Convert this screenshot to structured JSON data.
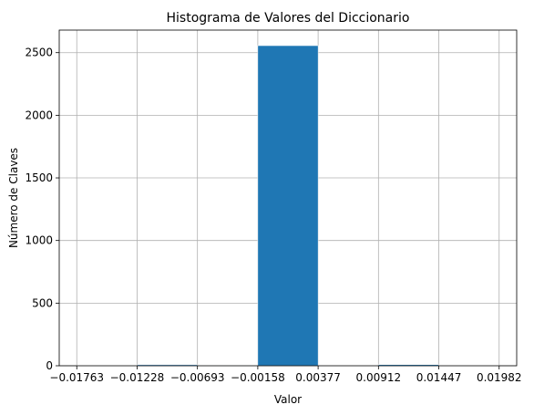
{
  "chart_data": {
    "type": "bar",
    "title": "Histograma de Valores del Diccionario",
    "xlabel": "Valor",
    "ylabel": "Número de Claves",
    "bin_edges": [
      -0.01763,
      -0.01228,
      -0.00693,
      -0.00158,
      0.00377,
      0.00912,
      0.01447,
      0.01982
    ],
    "x_tick_labels": [
      "−0.01763",
      "−0.01228",
      "−0.00693",
      "−0.00158",
      "0.00377",
      "0.00912",
      "0.01447",
      "0.01982"
    ],
    "values": [
      3,
      8,
      1,
      2556,
      2,
      9,
      3
    ],
    "ylim": [
      0,
      2680
    ],
    "y_ticks": [
      0,
      500,
      1000,
      1500,
      2000,
      2500
    ],
    "grid": true,
    "bar_color": "#1f77b4",
    "edge_color": "#ffffff",
    "grid_color": "#b0b0b0"
  }
}
